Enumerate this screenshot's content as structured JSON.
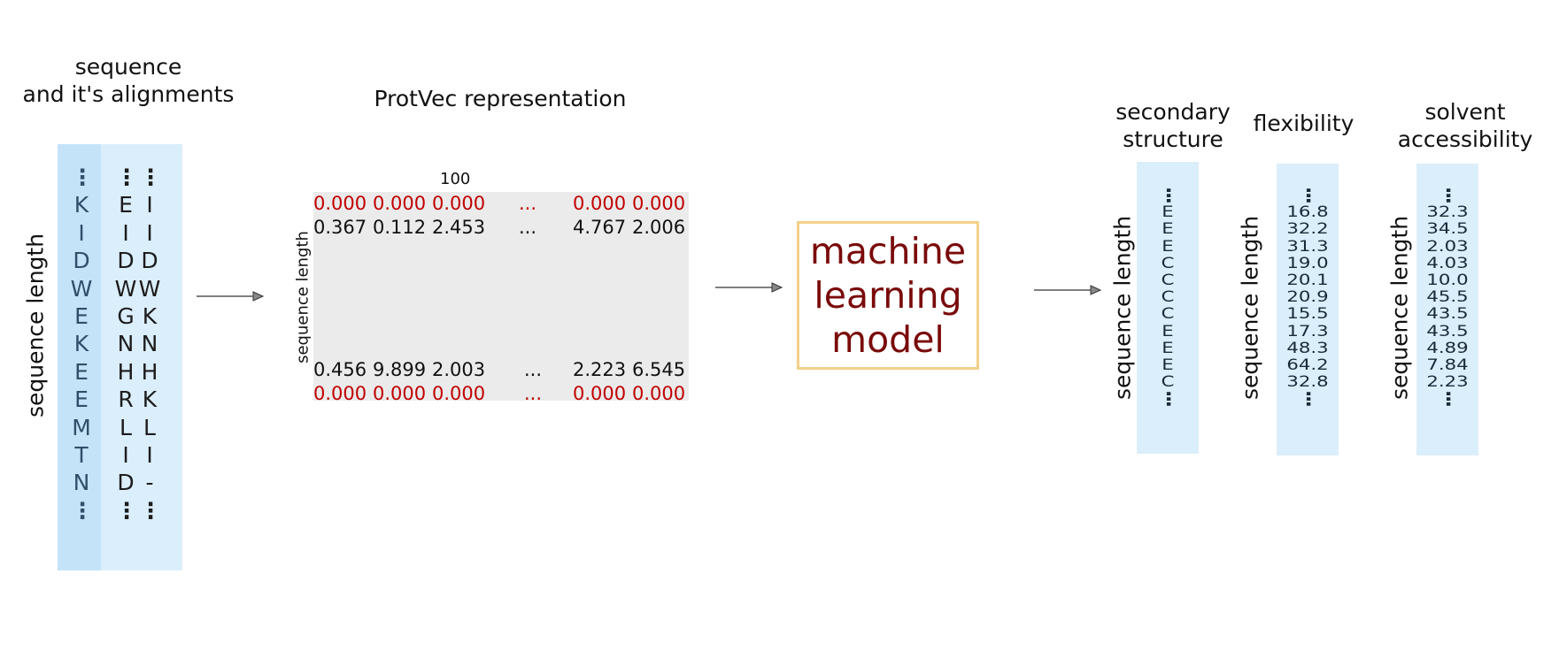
{
  "input": {
    "title_line1": "sequence",
    "title_line2": "and it's alignments",
    "axis_label": "sequence length",
    "query": [
      "K",
      "I",
      "D",
      "W",
      "E",
      "K",
      "E",
      "E",
      "M",
      "T",
      "N"
    ],
    "alignment_1": [
      "E",
      "I",
      "D",
      "W",
      "G",
      "N",
      "H",
      "R",
      "L",
      "I",
      "D"
    ],
    "alignment_2": [
      "I",
      "I",
      "D",
      "W",
      "K",
      "N",
      "H",
      "K",
      "L",
      "I",
      "-"
    ],
    "ellipsis": "⋮"
  },
  "protvec": {
    "title": "ProtVec representation",
    "dimension_label": "100",
    "axis_label": "sequence length",
    "rows": [
      {
        "values": [
          "0.000",
          "0.000",
          "0.000",
          "...",
          "0.000",
          "0.000"
        ],
        "padding": true
      },
      {
        "values": [
          "0.367",
          "0.112",
          "2.453",
          "...",
          "4.767",
          "2.006"
        ],
        "padding": false
      },
      {
        "values": [
          "0.456",
          "9.899",
          "2.003",
          "...",
          "2.223",
          "6.545"
        ],
        "padding": false
      },
      {
        "values": [
          "0.000",
          "0.000",
          "0.000",
          "...",
          "0.000",
          "0.000"
        ],
        "padding": true
      }
    ]
  },
  "model": {
    "line1": "machine",
    "line2": "learning",
    "line3": "model",
    "border_color": "#f3d089",
    "text_color": "#7a0a0a"
  },
  "outputs": {
    "axis_label": "sequence length",
    "secondary_structure": {
      "title_line1": "secondary",
      "title_line2": "structure",
      "values": [
        "E",
        "E",
        "E",
        "C",
        "C",
        "C",
        "C",
        "E",
        "E",
        "E",
        "C"
      ]
    },
    "flexibility": {
      "title": "flexibility",
      "values": [
        "16.8",
        "32.2",
        "31.3",
        "19.0",
        "20.1",
        "20.9",
        "15.5",
        "17.3",
        "48.3",
        "64.2",
        "32.8"
      ]
    },
    "solvent_accessibility": {
      "title_line1": "solvent",
      "title_line2": "accessibility",
      "values": [
        "32.3",
        "34.5",
        "2.03",
        "4.03",
        "10.0",
        "45.5",
        "43.5",
        "43.5",
        "4.89",
        "7.84",
        "2.23"
      ]
    }
  },
  "colors": {
    "query_column": "#c5e3f8",
    "alignment_column": "#dbeefb",
    "matrix_background": "#ebebeb",
    "padding_text": "#c00000"
  }
}
